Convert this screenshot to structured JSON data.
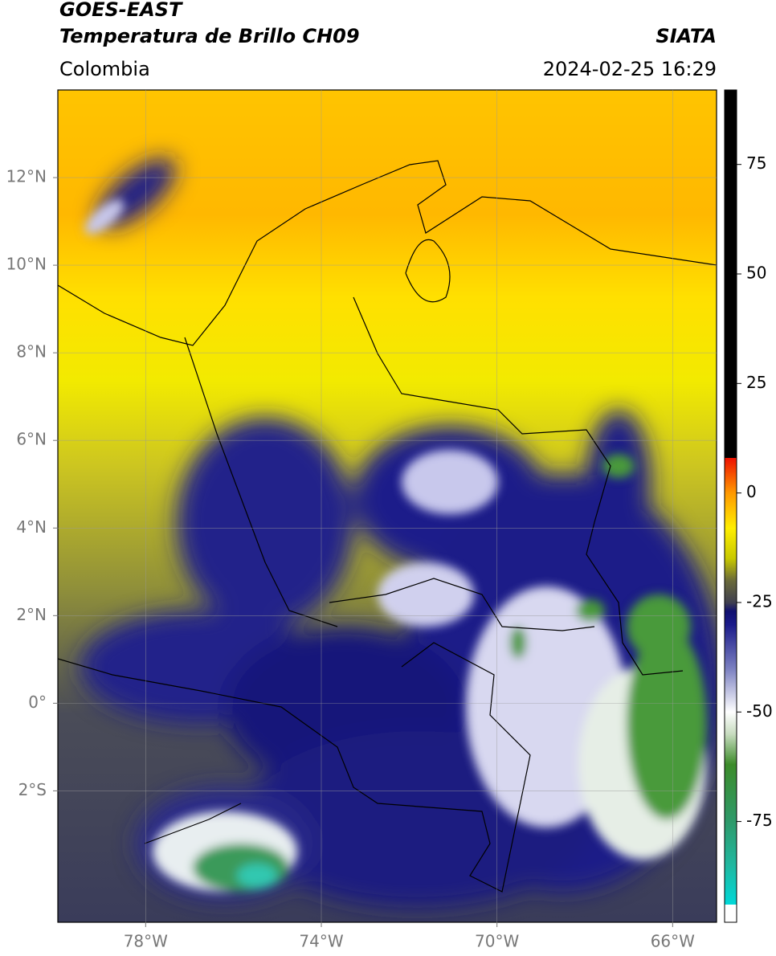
{
  "header": {
    "title": "GOES-EAST",
    "subtitle": "Temperatura de Brillo CH09",
    "source": "SIATA",
    "region": "Colombia",
    "datetime": "2024-02-25 16:29"
  },
  "map": {
    "xlim": [
      -80,
      -65
    ],
    "ylim": [
      -5,
      14
    ],
    "grid": true,
    "xticks": [
      {
        "value": -78,
        "label": "78°W"
      },
      {
        "value": -74,
        "label": "74°W"
      },
      {
        "value": -70,
        "label": "70°W"
      },
      {
        "value": -66,
        "label": "66°W"
      }
    ],
    "yticks": [
      {
        "value": 12,
        "label": "12°N"
      },
      {
        "value": 10,
        "label": "10°N"
      },
      {
        "value": 8,
        "label": "8°N"
      },
      {
        "value": 6,
        "label": "6°N"
      },
      {
        "value": 4,
        "label": "4°N"
      },
      {
        "value": 2,
        "label": "2°N"
      },
      {
        "value": 0,
        "label": "0°"
      },
      {
        "value": -2,
        "label": "2°S"
      }
    ]
  },
  "colorbar": {
    "lim": [
      -98,
      92
    ],
    "ticks": [
      75,
      50,
      25,
      0,
      -25,
      -50,
      -75
    ],
    "stops": [
      {
        "value": -98,
        "color": "#ffffff"
      },
      {
        "value": -94,
        "color": "#ffffff"
      },
      {
        "value": -94,
        "color": "#00d8d8"
      },
      {
        "value": -85,
        "color": "#20b8a0"
      },
      {
        "value": -75,
        "color": "#2e9a6a"
      },
      {
        "value": -62,
        "color": "#3c8c2a"
      },
      {
        "value": -55,
        "color": "#c8dcc0"
      },
      {
        "value": -50,
        "color": "#ffffff"
      },
      {
        "value": -40,
        "color": "#7a7fc0"
      },
      {
        "value": -30,
        "color": "#1a1a8a"
      },
      {
        "value": -27,
        "color": "#101070"
      },
      {
        "value": -25,
        "color": "#404050"
      },
      {
        "value": -20,
        "color": "#6a6a3a"
      },
      {
        "value": -15,
        "color": "#c8c800"
      },
      {
        "value": -8,
        "color": "#ffee00"
      },
      {
        "value": 0,
        "color": "#ff9900"
      },
      {
        "value": 8,
        "color": "#ee1100"
      },
      {
        "value": 8,
        "color": "#000000"
      },
      {
        "value": 92,
        "color": "#000000"
      }
    ]
  }
}
